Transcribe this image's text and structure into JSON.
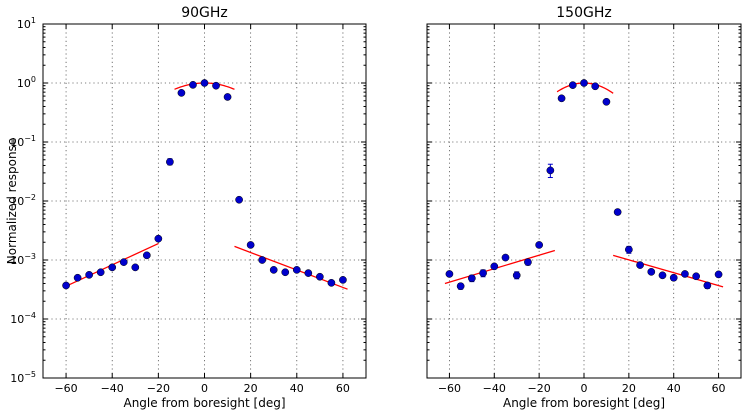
{
  "chart_data": [
    {
      "type": "scatter",
      "title": "90GHz",
      "xlabel": "Angle from boresight [deg]",
      "ylabel": "Normalized response",
      "xlim": [
        -70,
        70
      ],
      "ylim": [
        1e-05,
        10
      ],
      "yscale": "log",
      "grid": true,
      "xticks": [
        -60,
        -40,
        -20,
        0,
        20,
        40,
        60
      ],
      "xtick_labels": [
        "−60",
        "−40",
        "−20",
        "0",
        "20",
        "40",
        "60"
      ],
      "ytick_exponents": [
        -5,
        -4,
        -3,
        -2,
        -1,
        0,
        1
      ],
      "ytick_base": "10",
      "marker_color": "#0000cc",
      "fit_color": "#ff0000",
      "points": [
        {
          "x": -60,
          "y": 0.00037,
          "err_low": 0.00034,
          "err_high": 0.0004
        },
        {
          "x": -55,
          "y": 0.0005,
          "err_low": 0.00047,
          "err_high": 0.00053
        },
        {
          "x": -50,
          "y": 0.00056,
          "err_low": 0.00053,
          "err_high": 0.00059
        },
        {
          "x": -45,
          "y": 0.00062,
          "err_low": 0.00058,
          "err_high": 0.00066
        },
        {
          "x": -40,
          "y": 0.00075,
          "err_low": 0.0007,
          "err_high": 0.0008
        },
        {
          "x": -35,
          "y": 0.00092,
          "err_low": 0.00087,
          "err_high": 0.00097
        },
        {
          "x": -30,
          "y": 0.00075,
          "err_low": 0.0007,
          "err_high": 0.0008
        },
        {
          "x": -25,
          "y": 0.0012,
          "err_low": 0.00112,
          "err_high": 0.00128
        },
        {
          "x": -20,
          "y": 0.0023,
          "err_low": 0.0021,
          "err_high": 0.0025
        },
        {
          "x": -15,
          "y": 0.046,
          "err_low": 0.041,
          "err_high": 0.052
        },
        {
          "x": -10,
          "y": 0.68,
          "err_low": 0.65,
          "err_high": 0.71
        },
        {
          "x": -5,
          "y": 0.93,
          "err_low": 0.9,
          "err_high": 0.96
        },
        {
          "x": 0,
          "y": 1.0,
          "err_low": 0.97,
          "err_high": 1.03
        },
        {
          "x": 5,
          "y": 0.9,
          "err_low": 0.87,
          "err_high": 0.93
        },
        {
          "x": 10,
          "y": 0.58,
          "err_low": 0.55,
          "err_high": 0.61
        },
        {
          "x": 15,
          "y": 0.0105,
          "err_low": 0.0098,
          "err_high": 0.0112
        },
        {
          "x": 20,
          "y": 0.0018,
          "err_low": 0.0017,
          "err_high": 0.0019
        },
        {
          "x": 25,
          "y": 0.001,
          "err_low": 0.00095,
          "err_high": 0.00105
        },
        {
          "x": 30,
          "y": 0.00068,
          "err_low": 0.00064,
          "err_high": 0.00072
        },
        {
          "x": 35,
          "y": 0.00062,
          "err_low": 0.00058,
          "err_high": 0.00066
        },
        {
          "x": 40,
          "y": 0.00068,
          "err_low": 0.00064,
          "err_high": 0.00072
        },
        {
          "x": 45,
          "y": 0.0006,
          "err_low": 0.00056,
          "err_high": 0.00064
        },
        {
          "x": 50,
          "y": 0.00052,
          "err_low": 0.00049,
          "err_high": 0.00055
        },
        {
          "x": 55,
          "y": 0.00041,
          "err_low": 0.00038,
          "err_high": 0.00044
        },
        {
          "x": 60,
          "y": 0.00046,
          "err_low": 0.00043,
          "err_high": 0.0005
        }
      ],
      "fits": [
        {
          "name": "left-sidelobe-fit",
          "kind": "line",
          "x0": -60,
          "y0": 0.00036,
          "x1": -20,
          "y1": 0.0019
        },
        {
          "name": "main-lobe-fit",
          "kind": "gaussian",
          "amplitude": 1.0,
          "sigma": 18.5,
          "x_from": -13,
          "x_to": 13
        },
        {
          "name": "right-sidelobe-fit",
          "kind": "line",
          "x0": 13,
          "y0": 0.0017,
          "x1": 62,
          "y1": 0.00032
        }
      ]
    },
    {
      "type": "scatter",
      "title": "150GHz",
      "xlabel": "Angle from boresight [deg]",
      "ylabel": "",
      "xlim": [
        -70,
        70
      ],
      "ylim": [
        1e-05,
        10
      ],
      "yscale": "log",
      "grid": true,
      "xticks": [
        -60,
        -40,
        -20,
        0,
        20,
        40,
        60
      ],
      "xtick_labels": [
        "−60",
        "−40",
        "−20",
        "0",
        "20",
        "40",
        "60"
      ],
      "ytick_exponents": [],
      "ytick_base": "10",
      "marker_color": "#0000cc",
      "fit_color": "#ff0000",
      "points": [
        {
          "x": -60,
          "y": 0.00058,
          "err_low": 0.00054,
          "err_high": 0.00062
        },
        {
          "x": -55,
          "y": 0.00036,
          "err_low": 0.00032,
          "err_high": 0.0004
        },
        {
          "x": -50,
          "y": 0.00049,
          "err_low": 0.00043,
          "err_high": 0.00055
        },
        {
          "x": -45,
          "y": 0.0006,
          "err_low": 0.00052,
          "err_high": 0.00068
        },
        {
          "x": -40,
          "y": 0.00078,
          "err_low": 0.00071,
          "err_high": 0.00085
        },
        {
          "x": -35,
          "y": 0.0011,
          "err_low": 0.00103,
          "err_high": 0.00117
        },
        {
          "x": -30,
          "y": 0.00055,
          "err_low": 0.00048,
          "err_high": 0.00063
        },
        {
          "x": -25,
          "y": 0.00092,
          "err_low": 0.00082,
          "err_high": 0.00102
        },
        {
          "x": -20,
          "y": 0.0018,
          "err_low": 0.00165,
          "err_high": 0.00195
        },
        {
          "x": -15,
          "y": 0.033,
          "err_low": 0.025,
          "err_high": 0.042
        },
        {
          "x": -10,
          "y": 0.55,
          "err_low": 0.52,
          "err_high": 0.58
        },
        {
          "x": -5,
          "y": 0.92,
          "err_low": 0.89,
          "err_high": 0.95
        },
        {
          "x": 0,
          "y": 1.0,
          "err_low": 0.97,
          "err_high": 1.03
        },
        {
          "x": 5,
          "y": 0.88,
          "err_low": 0.85,
          "err_high": 0.91
        },
        {
          "x": 10,
          "y": 0.48,
          "err_low": 0.45,
          "err_high": 0.51
        },
        {
          "x": 15,
          "y": 0.0065,
          "err_low": 0.0059,
          "err_high": 0.0071
        },
        {
          "x": 20,
          "y": 0.0015,
          "err_low": 0.0013,
          "err_high": 0.0017
        },
        {
          "x": 25,
          "y": 0.00082,
          "err_low": 0.00076,
          "err_high": 0.00088
        },
        {
          "x": 30,
          "y": 0.00063,
          "err_low": 0.00059,
          "err_high": 0.00067
        },
        {
          "x": 35,
          "y": 0.00055,
          "err_low": 0.00051,
          "err_high": 0.00059
        },
        {
          "x": 40,
          "y": 0.0005,
          "err_low": 0.00045,
          "err_high": 0.00055
        },
        {
          "x": 45,
          "y": 0.00058,
          "err_low": 0.00054,
          "err_high": 0.00062
        },
        {
          "x": 50,
          "y": 0.00053,
          "err_low": 0.00049,
          "err_high": 0.00057
        },
        {
          "x": 55,
          "y": 0.00037,
          "err_low": 0.00033,
          "err_high": 0.00041
        },
        {
          "x": 60,
          "y": 0.00057,
          "err_low": 0.00052,
          "err_high": 0.00062
        }
      ],
      "fits": [
        {
          "name": "left-sidelobe-fit",
          "kind": "line",
          "x0": -62,
          "y0": 0.0004,
          "x1": -13,
          "y1": 0.00145
        },
        {
          "name": "main-lobe-fit",
          "kind": "gaussian",
          "amplitude": 1.0,
          "sigma": 14.5,
          "x_from": -12,
          "x_to": 13
        },
        {
          "name": "right-sidelobe-fit",
          "kind": "line",
          "x0": 13,
          "y0": 0.0012,
          "x1": 62,
          "y1": 0.00035
        }
      ]
    }
  ]
}
